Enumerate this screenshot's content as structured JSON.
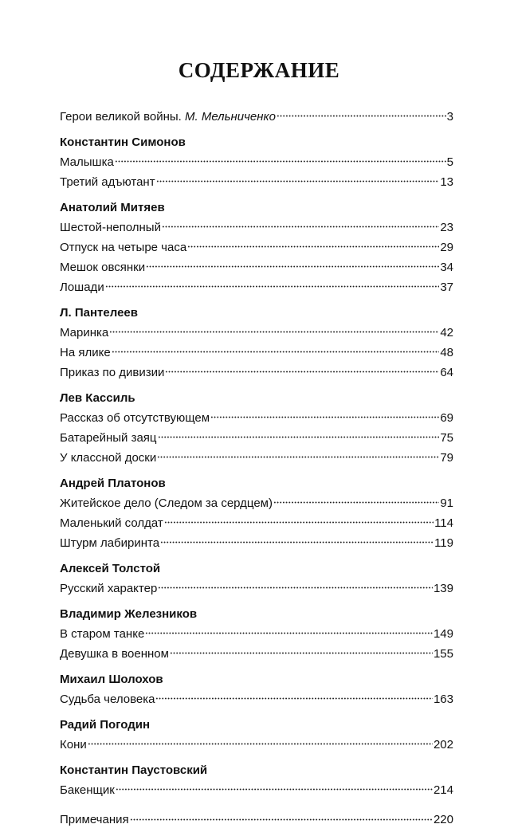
{
  "title": "СОДЕРЖАНИЕ",
  "sections": [
    {
      "author": "",
      "entries": [
        {
          "title": "Герои великой войны. ",
          "title_italic": "М. Мельниченко",
          "page": "3"
        }
      ]
    },
    {
      "author": "Константин Симонов",
      "entries": [
        {
          "title": "Малышка",
          "page": "5"
        },
        {
          "title": "Третий адъютант",
          "page": "13"
        }
      ]
    },
    {
      "author": "Анатолий Митяев",
      "entries": [
        {
          "title": "Шестой-неполный",
          "page": "23"
        },
        {
          "title": "Отпуск на четыре часа",
          "page": "29"
        },
        {
          "title": "Мешок овсянки",
          "page": "34"
        },
        {
          "title": "Лошади",
          "page": "37"
        }
      ]
    },
    {
      "author": "Л. Пантелеев",
      "entries": [
        {
          "title": "Маринка",
          "page": "42"
        },
        {
          "title": "На ялике",
          "page": "48"
        },
        {
          "title": "Приказ по дивизии",
          "page": "64"
        }
      ]
    },
    {
      "author": "Лев Кассиль",
      "entries": [
        {
          "title": "Рассказ об отсутствующем",
          "page": "69"
        },
        {
          "title": "Батарейный заяц",
          "page": "75"
        },
        {
          "title": "У классной доски",
          "page": "79"
        }
      ]
    },
    {
      "author": "Андрей Платонов",
      "entries": [
        {
          "title": "Житейское дело (Следом за сердцем)",
          "page": "91"
        },
        {
          "title": "Маленький солдат",
          "page": "114"
        },
        {
          "title": "Штурм лабиринта",
          "page": "119"
        }
      ]
    },
    {
      "author": "Алексей Толстой",
      "entries": [
        {
          "title": "Русский характер",
          "page": "139"
        }
      ]
    },
    {
      "author": "Владимир Железников",
      "entries": [
        {
          "title": "В старом танке",
          "page": "149"
        },
        {
          "title": "Девушка в военном",
          "page": "155"
        }
      ]
    },
    {
      "author": "Михаил Шолохов",
      "entries": [
        {
          "title": "Судьба человека",
          "page": "163"
        }
      ]
    },
    {
      "author": "Радий Погодин",
      "entries": [
        {
          "title": "Кони",
          "page": "202"
        }
      ]
    },
    {
      "author": "Константин Паустовский",
      "entries": [
        {
          "title": "Бакенщик",
          "page": "214"
        }
      ]
    },
    {
      "author": "",
      "entries": [
        {
          "title": "Примечания",
          "page": "220"
        }
      ]
    }
  ]
}
